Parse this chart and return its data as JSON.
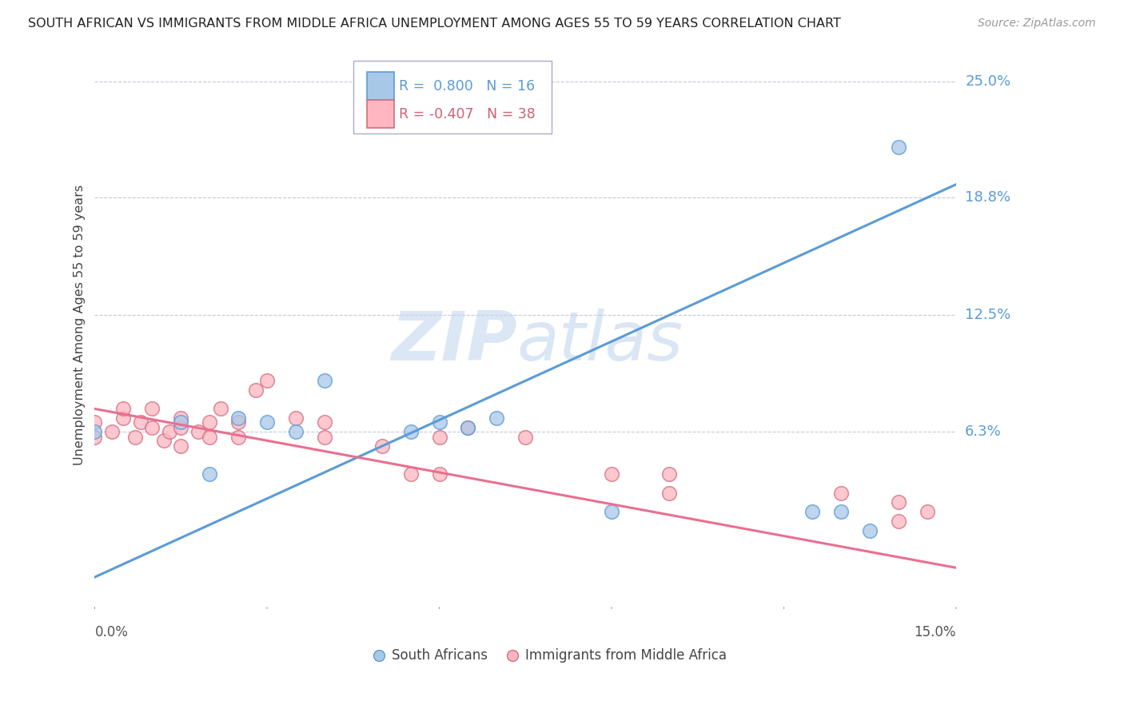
{
  "title": "SOUTH AFRICAN VS IMMIGRANTS FROM MIDDLE AFRICA UNEMPLOYMENT AMONG AGES 55 TO 59 YEARS CORRELATION CHART",
  "source": "Source: ZipAtlas.com",
  "ylabel": "Unemployment Among Ages 55 to 59 years",
  "ytick_labels": [
    "25.0%",
    "18.8%",
    "12.5%",
    "6.3%"
  ],
  "ytick_values": [
    0.25,
    0.188,
    0.125,
    0.063
  ],
  "xlim": [
    0.0,
    0.15
  ],
  "ylim": [
    -0.03,
    0.27
  ],
  "legend1_label": "South Africans",
  "legend2_label": "Immigrants from Middle Africa",
  "r1": 0.8,
  "n1": 16,
  "r2": -0.407,
  "n2": 38,
  "color_sa": "#a8c8e8",
  "color_imm": "#ffb6c1",
  "color_line_sa": "#5b9bd5",
  "color_line_imm": "#e87090",
  "watermark_zip": "ZIP",
  "watermark_atlas": "atlas",
  "background_color": "#ffffff",
  "grid_color": "#c8c8dc",
  "sa_line_x0": 0.0,
  "sa_line_y0": -0.015,
  "sa_line_x1": 0.15,
  "sa_line_y1": 0.195,
  "imm_line_x0": 0.0,
  "imm_line_y0": 0.075,
  "imm_line_x1": 0.15,
  "imm_line_y1": -0.01,
  "sa_scatter_x": [
    0.0,
    0.015,
    0.02,
    0.025,
    0.03,
    0.035,
    0.04,
    0.055,
    0.06,
    0.065,
    0.07,
    0.09,
    0.125,
    0.13,
    0.135,
    0.14
  ],
  "sa_scatter_y": [
    0.063,
    0.068,
    0.04,
    0.07,
    0.068,
    0.063,
    0.09,
    0.063,
    0.068,
    0.065,
    0.07,
    0.02,
    0.02,
    0.02,
    0.01,
    0.215
  ],
  "imm_scatter_x": [
    0.0,
    0.0,
    0.003,
    0.005,
    0.005,
    0.007,
    0.008,
    0.01,
    0.01,
    0.012,
    0.013,
    0.015,
    0.015,
    0.015,
    0.018,
    0.02,
    0.02,
    0.022,
    0.025,
    0.025,
    0.028,
    0.03,
    0.035,
    0.04,
    0.04,
    0.05,
    0.055,
    0.06,
    0.06,
    0.065,
    0.075,
    0.09,
    0.1,
    0.1,
    0.13,
    0.14,
    0.14,
    0.145
  ],
  "imm_scatter_y": [
    0.068,
    0.06,
    0.063,
    0.07,
    0.075,
    0.06,
    0.068,
    0.065,
    0.075,
    0.058,
    0.063,
    0.055,
    0.065,
    0.07,
    0.063,
    0.06,
    0.068,
    0.075,
    0.06,
    0.068,
    0.085,
    0.09,
    0.07,
    0.06,
    0.068,
    0.055,
    0.04,
    0.04,
    0.06,
    0.065,
    0.06,
    0.04,
    0.03,
    0.04,
    0.03,
    0.015,
    0.025,
    0.02
  ]
}
